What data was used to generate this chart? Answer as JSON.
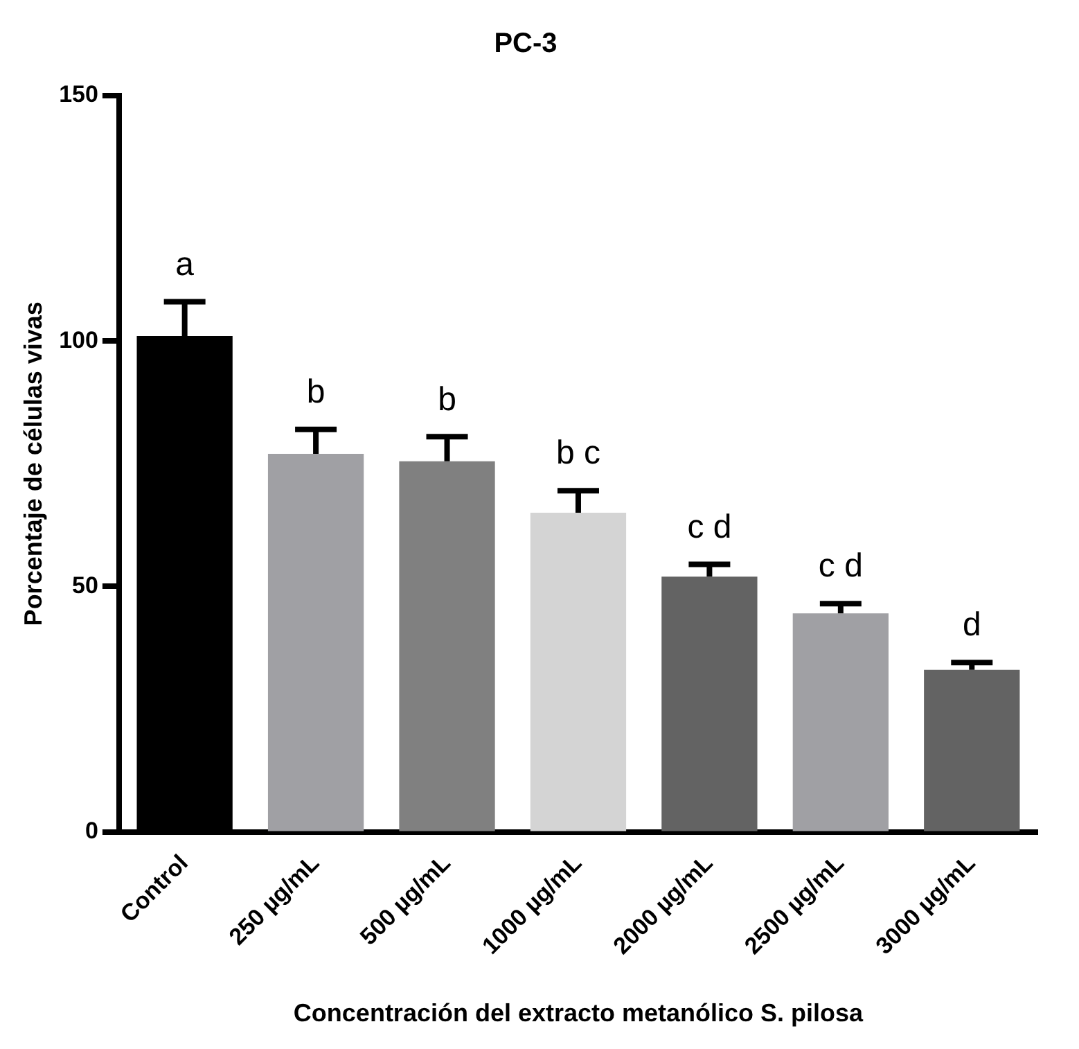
{
  "chart_data": {
    "type": "bar",
    "title": "PC-3",
    "xlabel": "Concentración del extracto metanólico S. pilosa",
    "ylabel": "Porcentaje de células vivas",
    "categories": [
      "Control",
      "250 µg/mL",
      "500 µg/mL",
      "1000 µg/mL",
      "2000 µg/mL",
      "2500 µg/mL",
      "3000 µg/mL"
    ],
    "values": [
      101,
      77,
      75.5,
      65,
      52,
      44.5,
      33
    ],
    "colors": [
      "#000000",
      "#a0a0a4",
      "#808080",
      "#d4d4d4",
      "#636363",
      "#a0a0a4",
      "#636363"
    ],
    "errors": [
      [
        101,
        108
      ],
      [
        77,
        82
      ],
      [
        75.5,
        80.5
      ],
      [
        65,
        69.5
      ],
      [
        52,
        54.5
      ],
      [
        44.5,
        46.5
      ],
      [
        33,
        34.5
      ]
    ],
    "ylim": [
      0,
      150
    ],
    "yticks": [
      0,
      50,
      100,
      150
    ],
    "grid": false,
    "legend": false,
    "annotations": [
      "a",
      "b",
      "b",
      "b c",
      "c d",
      "c d",
      "d"
    ]
  }
}
